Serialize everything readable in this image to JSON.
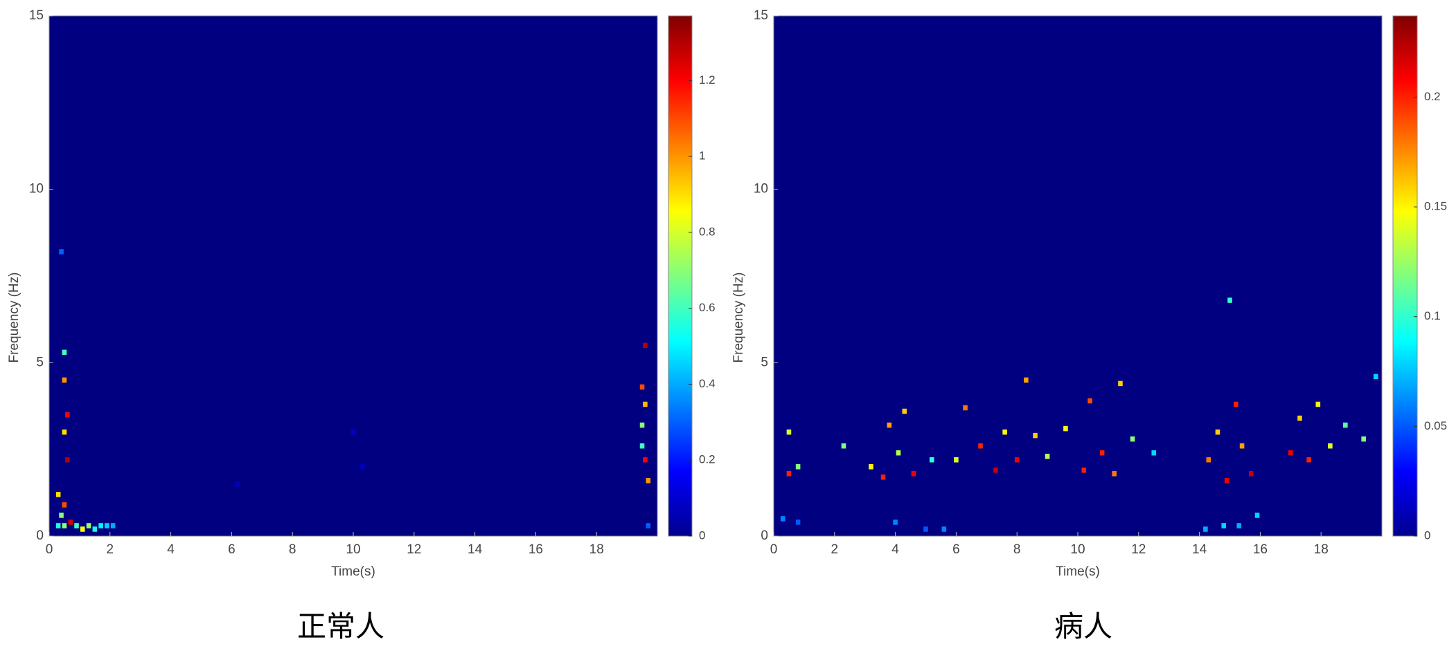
{
  "chart_data": [
    {
      "type": "spectrogram",
      "xlabel": "Time(s)",
      "ylabel": "Frequency (Hz)",
      "caption": "正常人",
      "xlim": [
        0,
        20
      ],
      "ylim": [
        0,
        15
      ],
      "xticks": [
        0,
        2,
        4,
        6,
        8,
        10,
        12,
        14,
        16,
        18
      ],
      "yticks": [
        0,
        5,
        10,
        15
      ],
      "clim": [
        0,
        1.37
      ],
      "cticks": [
        0,
        0.2,
        0.4,
        0.6,
        0.8,
        1,
        1.2
      ],
      "x": [
        0.3,
        0.5,
        0.7,
        0.9,
        1.1,
        1.3,
        1.5,
        1.7,
        1.9,
        2.1,
        0.3,
        0.5,
        0.4,
        0.5,
        0.6,
        0.5,
        0.5,
        0.4,
        0.6,
        19.5,
        19.6,
        19.5,
        19.6,
        19.7,
        19.6,
        19.5,
        19.7,
        6.2,
        10.0,
        10.3
      ],
      "y": [
        0.3,
        0.3,
        0.4,
        0.3,
        0.2,
        0.3,
        0.2,
        0.3,
        0.3,
        0.3,
        1.2,
        0.9,
        0.6,
        3.0,
        3.5,
        4.5,
        5.3,
        8.2,
        2.2,
        4.3,
        3.8,
        2.6,
        2.2,
        1.6,
        5.5,
        3.2,
        0.3,
        1.5,
        3.0,
        2.0
      ],
      "values": [
        0.55,
        0.7,
        1.25,
        0.6,
        0.85,
        0.7,
        0.55,
        0.5,
        0.45,
        0.4,
        0.9,
        1.1,
        0.7,
        0.9,
        1.2,
        1.0,
        0.6,
        0.3,
        1.3,
        1.1,
        0.95,
        0.6,
        1.2,
        1.0,
        1.3,
        0.7,
        0.3,
        0.08,
        0.1,
        0.08
      ]
    },
    {
      "type": "spectrogram",
      "xlabel": "Time(s)",
      "ylabel": "Frequency (Hz)",
      "caption": "病人",
      "xlim": [
        0,
        20
      ],
      "ylim": [
        0,
        15
      ],
      "xticks": [
        0,
        2,
        4,
        6,
        8,
        10,
        12,
        14,
        16,
        18
      ],
      "yticks": [
        0,
        5,
        10,
        15
      ],
      "clim": [
        0,
        0.237
      ],
      "cticks": [
        0,
        0.05,
        0.1,
        0.15,
        0.2
      ],
      "x": [
        0.3,
        0.8,
        4.0,
        5.0,
        5.6,
        14.2,
        14.8,
        15.3,
        15.9,
        0.5,
        0.5,
        0.8,
        2.3,
        3.2,
        3.6,
        3.8,
        4.1,
        4.3,
        4.6,
        5.2,
        6.0,
        6.3,
        6.8,
        7.3,
        7.6,
        8.0,
        8.3,
        8.6,
        9.0,
        9.6,
        10.2,
        10.4,
        10.8,
        11.2,
        11.4,
        11.8,
        12.5,
        14.3,
        14.6,
        14.9,
        15.2,
        15.4,
        15.7,
        15.0,
        17.0,
        17.3,
        17.6,
        17.9,
        18.3,
        18.8,
        19.4,
        19.8
      ],
      "y": [
        0.5,
        0.4,
        0.4,
        0.2,
        0.2,
        0.2,
        0.3,
        0.3,
        0.6,
        1.8,
        3.0,
        2.0,
        2.6,
        2.0,
        1.7,
        3.2,
        2.4,
        3.6,
        1.8,
        2.2,
        2.2,
        3.7,
        2.6,
        1.9,
        3.0,
        2.2,
        4.5,
        2.9,
        2.3,
        3.1,
        1.9,
        3.9,
        2.4,
        1.8,
        4.4,
        2.8,
        2.4,
        2.2,
        3.0,
        1.6,
        3.8,
        2.6,
        1.8,
        6.8,
        2.4,
        3.4,
        2.2,
        3.8,
        2.6,
        3.2,
        2.8,
        4.6
      ],
      "values": [
        0.06,
        0.05,
        0.06,
        0.05,
        0.06,
        0.07,
        0.08,
        0.07,
        0.08,
        0.2,
        0.14,
        0.12,
        0.12,
        0.15,
        0.2,
        0.17,
        0.13,
        0.16,
        0.21,
        0.1,
        0.14,
        0.18,
        0.2,
        0.22,
        0.15,
        0.21,
        0.17,
        0.16,
        0.13,
        0.15,
        0.2,
        0.19,
        0.2,
        0.18,
        0.16,
        0.12,
        0.08,
        0.18,
        0.16,
        0.21,
        0.2,
        0.17,
        0.22,
        0.1,
        0.21,
        0.16,
        0.2,
        0.15,
        0.14,
        0.11,
        0.12,
        0.08
      ]
    }
  ]
}
